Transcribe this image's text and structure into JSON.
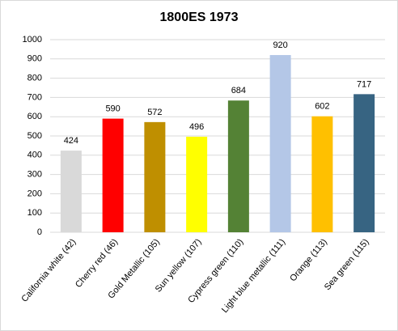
{
  "chart_data": {
    "type": "bar",
    "title": "1800ES 1973",
    "categories": [
      "California white (42)",
      "Cherry red (46)",
      "Gold Metallic (105)",
      "Sun yellow (107)",
      "Cypress green (110)",
      "Light blue metallic (111)",
      "Orange (113)",
      "Sea green (115)"
    ],
    "values": [
      424,
      590,
      572,
      496,
      684,
      920,
      602,
      717
    ],
    "colors": [
      "#d9d9d9",
      "#ff0000",
      "#bf8f00",
      "#ffff00",
      "#548235",
      "#b4c7e7",
      "#ffc000",
      "#376482"
    ],
    "ylim": [
      0,
      1000
    ],
    "yticks": [
      0,
      100,
      200,
      300,
      400,
      500,
      600,
      700,
      800,
      900,
      1000
    ],
    "grid": true
  }
}
